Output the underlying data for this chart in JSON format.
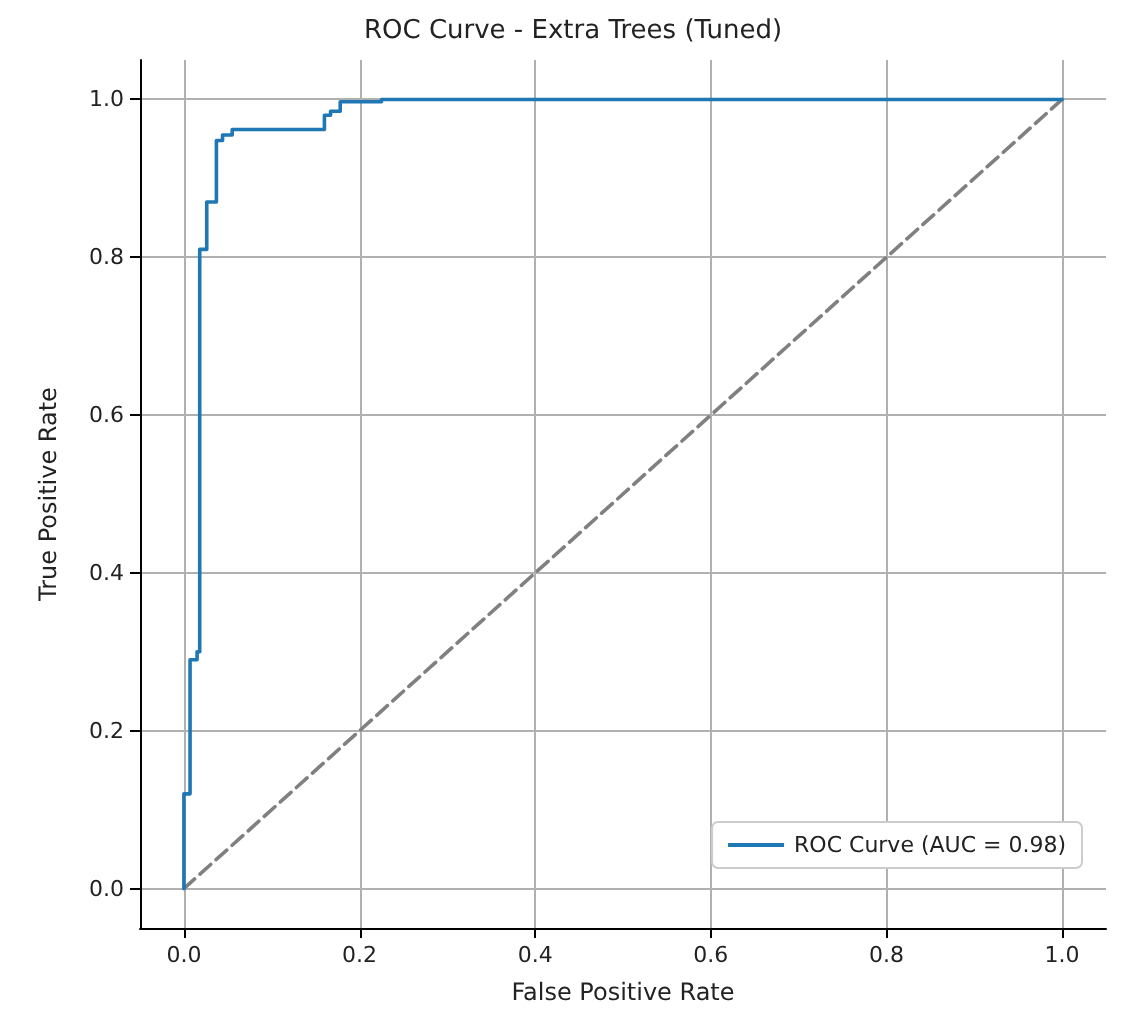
{
  "chart_data": {
    "type": "line",
    "title": "ROC Curve - Extra Trees (Tuned)",
    "xlabel": "False Positive Rate",
    "ylabel": "True Positive Rate",
    "series": [
      {
        "name": "ROC Curve (AUC = 0.98)",
        "color": "#1f77b4",
        "x": [
          0,
          0,
          0.007,
          0.007,
          0.015,
          0.015,
          0.018,
          0.018,
          0.026,
          0.026,
          0.037,
          0.037,
          0.044,
          0.044,
          0.055,
          0.055,
          0.16,
          0.16,
          0.167,
          0.167,
          0.178,
          0.178,
          0.225,
          0.225,
          1
        ],
        "values": [
          0,
          0.12,
          0.12,
          0.29,
          0.29,
          0.3,
          0.3,
          0.81,
          0.81,
          0.87,
          0.87,
          0.948,
          0.948,
          0.955,
          0.955,
          0.962,
          0.962,
          0.98,
          0.98,
          0.985,
          0.985,
          0.997,
          0.997,
          1,
          1
        ]
      },
      {
        "color": "#808080",
        "line_style": "dashed",
        "x": [
          0,
          1
        ],
        "values": [
          0,
          1
        ]
      }
    ],
    "xlim": [
      -0.05,
      1.05
    ],
    "ylim": [
      -0.05,
      1.05
    ],
    "xticks": [
      {
        "value": 0,
        "label": "0.0"
      },
      {
        "value": 0.2,
        "label": "0.2"
      },
      {
        "value": 0.4,
        "label": "0.4"
      },
      {
        "value": 0.6,
        "label": "0.6"
      },
      {
        "value": 0.8,
        "label": "0.8"
      },
      {
        "value": 1,
        "label": "1.0"
      }
    ],
    "yticks": [
      {
        "value": 0,
        "label": "0.0"
      },
      {
        "value": 0.2,
        "label": "0.2"
      },
      {
        "value": 0.4,
        "label": "0.4"
      },
      {
        "value": 0.6,
        "label": "0.6"
      },
      {
        "value": 0.8,
        "label": "0.8"
      },
      {
        "value": 1,
        "label": "1.0"
      }
    ],
    "grid": true,
    "legend": "bottom right",
    "marker": "none",
    "line_style": "solid"
  }
}
